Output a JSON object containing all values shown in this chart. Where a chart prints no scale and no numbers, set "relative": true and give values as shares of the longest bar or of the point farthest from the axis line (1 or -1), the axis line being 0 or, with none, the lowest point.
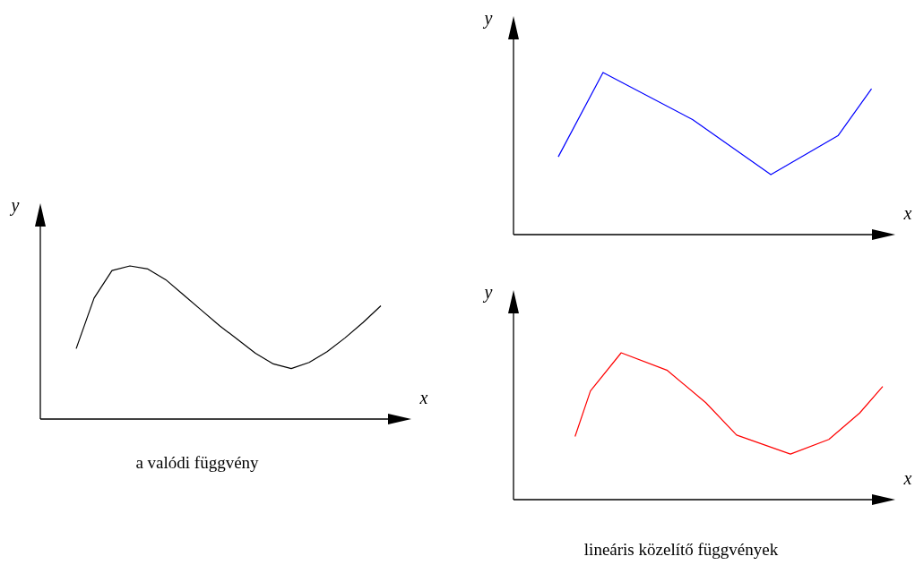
{
  "chart_data": [
    {
      "type": "line",
      "relative": true,
      "xlabel": "x",
      "ylabel": "y",
      "annotations": [
        "a valódi függvény"
      ],
      "categories": [
        null,
        null,
        null,
        null,
        null,
        null,
        null,
        null,
        null,
        null,
        null,
        null,
        null,
        null,
        null,
        null,
        null,
        null,
        null,
        null,
        null
      ],
      "series": [
        {
          "color": "#000000",
          "values": [
            null,
            null,
            0.46,
            0.79,
            0.97,
            1,
            0.98,
            0.91,
            0.81,
            0.71,
            0.61,
            0.52,
            0.43,
            0.36,
            0.33,
            0.37,
            0.44,
            0.53,
            0.63,
            0.74,
            null
          ]
        }
      ]
    },
    {
      "type": "line",
      "relative": true,
      "xlabel": "x",
      "ylabel": "y",
      "categories": [
        null,
        null,
        null,
        null,
        null,
        null,
        null,
        null,
        null,
        null,
        null,
        null,
        null,
        null,
        null,
        null,
        null,
        null,
        null,
        null,
        null,
        null,
        null,
        null,
        null,
        null,
        null,
        null,
        null,
        null,
        null,
        null,
        null,
        null
      ],
      "series": [
        {
          "color": "#0000ff",
          "values": [
            null,
            null,
            null,
            null,
            0.48,
            null,
            null,
            null,
            1,
            null,
            null,
            null,
            null,
            null,
            null,
            null,
            0.71,
            null,
            null,
            null,
            null,
            null,
            null,
            0.37,
            null,
            null,
            null,
            null,
            null,
            0.61,
            null,
            null,
            0.9,
            null
          ]
        }
      ]
    },
    {
      "type": "line",
      "relative": true,
      "xlabel": "x",
      "ylabel": "y",
      "annotations": [
        "lineáris közelítő függvények"
      ],
      "categories": [
        null,
        null,
        null,
        null,
        null,
        null,
        null,
        null,
        null,
        null,
        null,
        null,
        null,
        null,
        null,
        null,
        null,
        null,
        null,
        null,
        null,
        null,
        null,
        null,
        null,
        null,
        null,
        null,
        null,
        null,
        null,
        null,
        null,
        null,
        null,
        null,
        null,
        null,
        null,
        null,
        null,
        null,
        null,
        null,
        null,
        null,
        null,
        null,
        null
      ],
      "series": [
        {
          "color": "#ff0000",
          "values": [
            null,
            null,
            null,
            null,
            null,
            null,
            null,
            null,
            0.43,
            null,
            0.74,
            null,
            null,
            null,
            1,
            null,
            null,
            null,
            null,
            null,
            0.88,
            null,
            null,
            null,
            null,
            0.66,
            null,
            null,
            null,
            0.44,
            null,
            null,
            null,
            null,
            null,
            null,
            0.31,
            null,
            null,
            null,
            null,
            0.41,
            null,
            null,
            null,
            0.59,
            null,
            null,
            0.77
          ]
        }
      ]
    }
  ]
}
